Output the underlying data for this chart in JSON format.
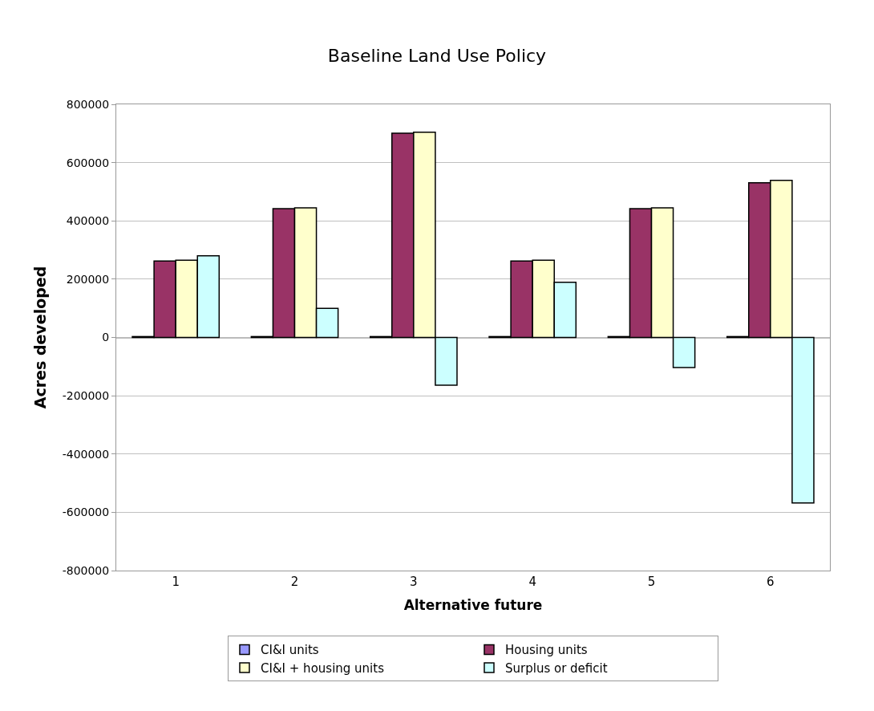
{
  "chart_data": {
    "type": "bar",
    "title": "Baseline Land Use Policy",
    "xlabel": "Alternative future",
    "ylabel": "Acres developed",
    "categories": [
      "1",
      "2",
      "3",
      "4",
      "5",
      "6"
    ],
    "series": [
      {
        "name": "CI&I units",
        "color": "#9999ff",
        "values": [
          3000,
          3000,
          3000,
          3000,
          3000,
          3000
        ]
      },
      {
        "name": "Housing units",
        "color": "#993366",
        "values": [
          262000,
          442000,
          701000,
          262000,
          442000,
          531000
        ]
      },
      {
        "name": "CI&I + housing units",
        "color": "#ffffcc",
        "values": [
          265000,
          445000,
          704000,
          265000,
          445000,
          539000
        ]
      },
      {
        "name": "Surplus or deficit",
        "color": "#ccffff",
        "values": [
          280000,
          100000,
          -164000,
          189000,
          -103000,
          -568000
        ]
      }
    ],
    "ylim": [
      -800000,
      800000
    ],
    "yticks": [
      -800000,
      -600000,
      -400000,
      -200000,
      0,
      200000,
      400000,
      600000,
      800000
    ],
    "grid": "y",
    "legend": "bottom"
  }
}
